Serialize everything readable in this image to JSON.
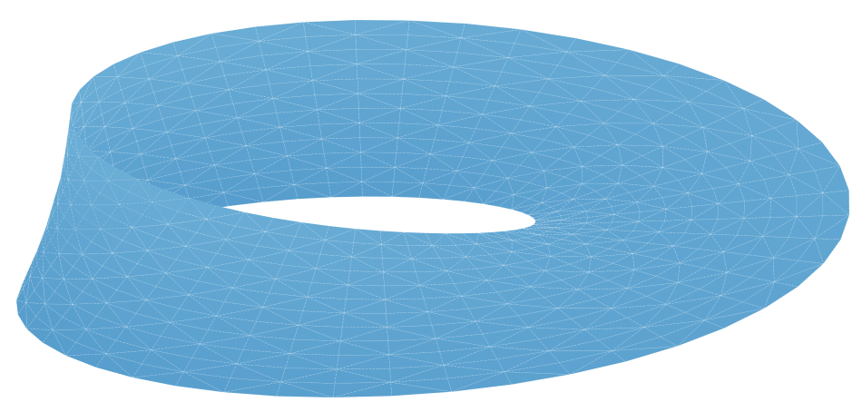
{
  "figure": {
    "kind": "mobius-strip-surface",
    "colormap": "Blues",
    "colors": {
      "background": "#ffffff",
      "lightest": "#f7fbff",
      "light": "#c6dbef",
      "mid": "#6baed6",
      "dark": "#2171b5",
      "darkest": "#08306b",
      "mesh_line": "#ffffff"
    },
    "mesh": {
      "u_segments": 48,
      "v_segments": 12,
      "triangulated": true
    }
  }
}
